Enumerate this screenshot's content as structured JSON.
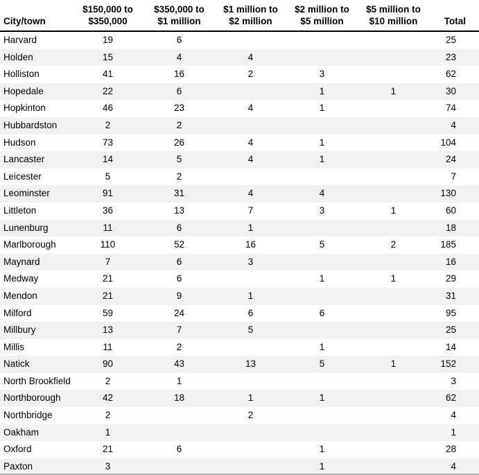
{
  "colors": {
    "background": "#ffffff",
    "text": "#000000",
    "stripe": "#f2f2f2",
    "header_rule": "#000000",
    "bottom_edge": "#aaaaaa"
  },
  "table": {
    "headers": [
      {
        "key": "city",
        "align": "left",
        "lines": [
          "City/town"
        ]
      },
      {
        "key": "band1",
        "align": "center",
        "lines": [
          "$150,000 to",
          "$350,000"
        ]
      },
      {
        "key": "band2",
        "align": "center",
        "lines": [
          "$350,000 to",
          "$1 million"
        ]
      },
      {
        "key": "band3",
        "align": "center",
        "lines": [
          "$1 million to",
          "$2 million"
        ]
      },
      {
        "key": "band4",
        "align": "center",
        "lines": [
          "$2 million to",
          "$5 million"
        ]
      },
      {
        "key": "band5",
        "align": "center",
        "lines": [
          "$5 million to",
          "$10 million"
        ]
      },
      {
        "key": "total",
        "align": "right",
        "lines": [
          "Total"
        ]
      }
    ]
  },
  "chart_data": {
    "type": "table",
    "title": "",
    "columns": [
      "City/town",
      "$150,000 to $350,000",
      "$350,000 to $1 million",
      "$1 million to $2 million",
      "$2 million to $5 million",
      "$5 million to $10 million",
      "Total"
    ],
    "rows": [
      {
        "city": "Harvard",
        "values": [
          19,
          6,
          null,
          null,
          null,
          25
        ]
      },
      {
        "city": "Holden",
        "values": [
          15,
          4,
          4,
          null,
          null,
          23
        ]
      },
      {
        "city": "Holliston",
        "values": [
          41,
          16,
          2,
          3,
          null,
          62
        ]
      },
      {
        "city": "Hopedale",
        "values": [
          22,
          6,
          null,
          1,
          1,
          30
        ]
      },
      {
        "city": "Hopkinton",
        "values": [
          46,
          23,
          4,
          1,
          null,
          74
        ]
      },
      {
        "city": "Hubbardston",
        "values": [
          2,
          2,
          null,
          null,
          null,
          4
        ]
      },
      {
        "city": "Hudson",
        "values": [
          73,
          26,
          4,
          1,
          null,
          104
        ]
      },
      {
        "city": "Lancaster",
        "values": [
          14,
          5,
          4,
          1,
          null,
          24
        ]
      },
      {
        "city": "Leicester",
        "values": [
          5,
          2,
          null,
          null,
          null,
          7
        ]
      },
      {
        "city": "Leominster",
        "values": [
          91,
          31,
          4,
          4,
          null,
          130
        ]
      },
      {
        "city": "Littleton",
        "values": [
          36,
          13,
          7,
          3,
          1,
          60
        ]
      },
      {
        "city": "Lunenburg",
        "values": [
          11,
          6,
          1,
          null,
          null,
          18
        ]
      },
      {
        "city": "Marlborough",
        "values": [
          110,
          52,
          16,
          5,
          2,
          185
        ]
      },
      {
        "city": "Maynard",
        "values": [
          7,
          6,
          3,
          null,
          null,
          16
        ]
      },
      {
        "city": "Medway",
        "values": [
          21,
          6,
          null,
          1,
          1,
          29
        ]
      },
      {
        "city": "Mendon",
        "values": [
          21,
          9,
          1,
          null,
          null,
          31
        ]
      },
      {
        "city": "Milford",
        "values": [
          59,
          24,
          6,
          6,
          null,
          95
        ]
      },
      {
        "city": "Millbury",
        "values": [
          13,
          7,
          5,
          null,
          null,
          25
        ]
      },
      {
        "city": "Millis",
        "values": [
          11,
          2,
          null,
          1,
          null,
          14
        ]
      },
      {
        "city": "Natick",
        "values": [
          90,
          43,
          13,
          5,
          1,
          152
        ]
      },
      {
        "city": "North Brookfield",
        "values": [
          2,
          1,
          null,
          null,
          null,
          3
        ]
      },
      {
        "city": "Northborough",
        "values": [
          42,
          18,
          1,
          1,
          null,
          62
        ]
      },
      {
        "city": "Northbridge",
        "values": [
          2,
          null,
          2,
          null,
          null,
          4
        ]
      },
      {
        "city": "Oakham",
        "values": [
          1,
          null,
          null,
          null,
          null,
          1
        ]
      },
      {
        "city": "Oxford",
        "values": [
          21,
          6,
          null,
          1,
          null,
          28
        ]
      },
      {
        "city": "Paxton",
        "values": [
          3,
          null,
          null,
          1,
          null,
          4
        ]
      }
    ]
  }
}
